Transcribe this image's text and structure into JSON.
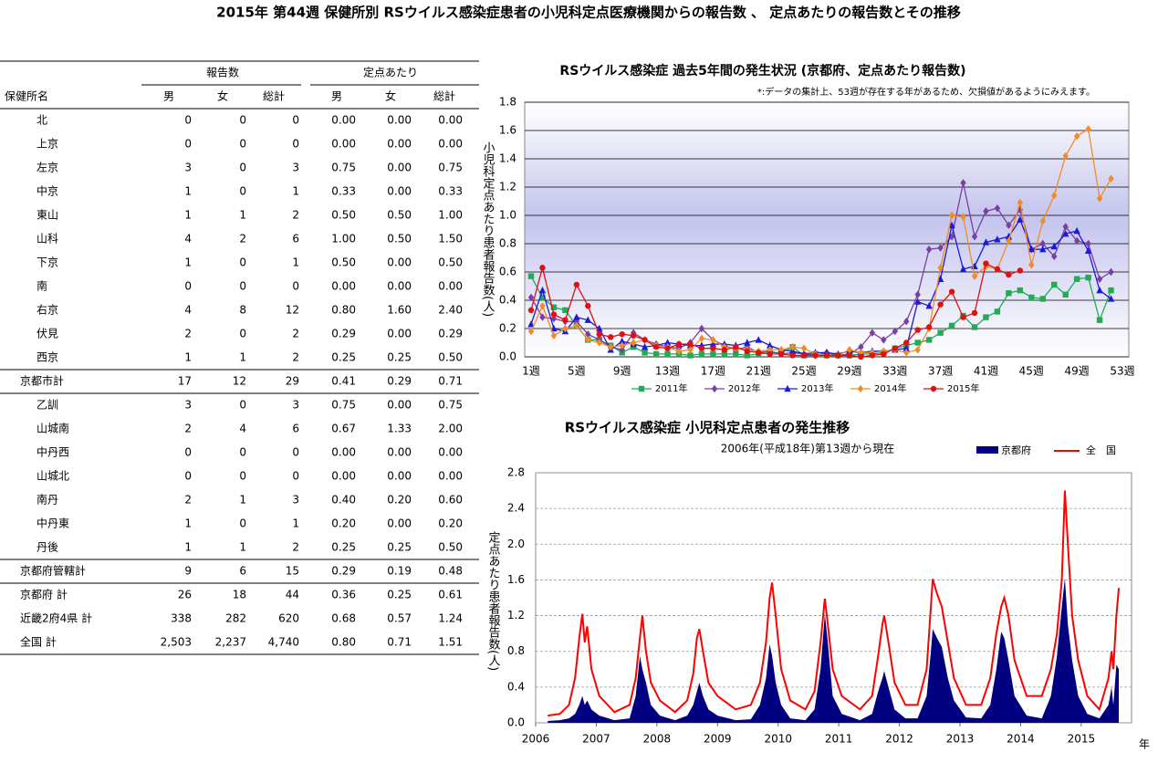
{
  "title": "2015年 第44週 保健所別 RSウイルス感染症患者の小児科定点医療機関からの報告数 、 定点あたりの報告数とその推移",
  "table": {
    "header_groups": [
      "報告数",
      "定点あたり"
    ],
    "columns": [
      "保健所名",
      "男",
      "女",
      "総計",
      "男",
      "女",
      "総計"
    ],
    "groups": [
      {
        "rows": [
          [
            "北",
            "0",
            "0",
            "0",
            "0.00",
            "0.00",
            "0.00"
          ],
          [
            "上京",
            "0",
            "0",
            "0",
            "0.00",
            "0.00",
            "0.00"
          ],
          [
            "左京",
            "3",
            "0",
            "3",
            "0.75",
            "0.00",
            "0.75"
          ],
          [
            "中京",
            "1",
            "0",
            "1",
            "0.33",
            "0.00",
            "0.33"
          ],
          [
            "東山",
            "1",
            "1",
            "2",
            "0.50",
            "0.50",
            "1.00"
          ],
          [
            "山科",
            "4",
            "2",
            "6",
            "1.00",
            "0.50",
            "1.50"
          ],
          [
            "下京",
            "1",
            "0",
            "1",
            "0.50",
            "0.00",
            "0.50"
          ],
          [
            "南",
            "0",
            "0",
            "0",
            "0.00",
            "0.00",
            "0.00"
          ],
          [
            "右京",
            "4",
            "8",
            "12",
            "0.80",
            "1.60",
            "2.40"
          ],
          [
            "伏見",
            "2",
            "0",
            "2",
            "0.29",
            "0.00",
            "0.29"
          ],
          [
            "西京",
            "1",
            "1",
            "2",
            "0.25",
            "0.25",
            "0.50"
          ]
        ],
        "total": [
          "京都市計",
          "17",
          "12",
          "29",
          "0.41",
          "0.29",
          "0.71"
        ]
      },
      {
        "rows": [
          [
            "乙訓",
            "3",
            "0",
            "3",
            "0.75",
            "0.00",
            "0.75"
          ],
          [
            "山城南",
            "2",
            "4",
            "6",
            "0.67",
            "1.33",
            "2.00"
          ],
          [
            "中丹西",
            "0",
            "0",
            "0",
            "0.00",
            "0.00",
            "0.00"
          ],
          [
            "山城北",
            "0",
            "0",
            "0",
            "0.00",
            "0.00",
            "0.00"
          ],
          [
            "南丹",
            "2",
            "1",
            "3",
            "0.40",
            "0.20",
            "0.60"
          ],
          [
            "中丹東",
            "1",
            "0",
            "1",
            "0.20",
            "0.00",
            "0.20"
          ],
          [
            "丹後",
            "1",
            "1",
            "2",
            "0.25",
            "0.25",
            "0.50"
          ]
        ],
        "total": [
          "京都府管轄計",
          "9",
          "6",
          "15",
          "0.29",
          "0.19",
          "0.48"
        ]
      }
    ],
    "summary": [
      [
        "京都府 計",
        "26",
        "18",
        "44",
        "0.36",
        "0.25",
        "0.61"
      ],
      [
        "近畿2府4県 計",
        "338",
        "282",
        "620",
        "0.68",
        "0.57",
        "1.24"
      ],
      [
        "全国 計",
        "2,503",
        "2,237",
        "4,740",
        "0.80",
        "0.71",
        "1.51"
      ]
    ]
  },
  "chart_data": [
    {
      "type": "line",
      "title": "RSウイルス感染症 過去5年間の発生状況 (京都府、定点あたり報告数)",
      "note": "*:データの集計上、53週が存在する年があるため、欠損値があるようにみえます。",
      "y_label": "小児科定点あたり患者報告数(人)",
      "categories": [
        "1週",
        null,
        null,
        null,
        "5週",
        null,
        null,
        null,
        "9週",
        null,
        null,
        null,
        "13週",
        null,
        null,
        null,
        "17週",
        null,
        null,
        null,
        "21週",
        null,
        null,
        null,
        "25週",
        null,
        null,
        null,
        "29週",
        null,
        null,
        null,
        "33週",
        null,
        null,
        null,
        "37週",
        null,
        null,
        null,
        "41週",
        null,
        null,
        null,
        "45週",
        null,
        null,
        null,
        "49週",
        null,
        null,
        null,
        "53週"
      ],
      "ylim": [
        0,
        1.8
      ],
      "yticks": [
        {
          "value": 0,
          "label": "0.0"
        },
        0.2,
        0.4,
        0.6,
        0.8,
        {
          "value": 1,
          "label": "1.0"
        },
        1.2,
        1.4,
        1.6,
        1.8
      ],
      "grid": true,
      "series": [
        {
          "name": "2011年",
          "color": "#22aa55",
          "marker": "square",
          "values": [
            0.57,
            0.42,
            0.35,
            0.33,
            0.22,
            0.12,
            0.12,
            0.08,
            0.03,
            0.07,
            0.03,
            0.02,
            0.02,
            0.02,
            0.01,
            0.02,
            0.02,
            0.02,
            0.02,
            0.01,
            0.02,
            0.03,
            0.03,
            0.07,
            0.01,
            0.02,
            0.01,
            0.01,
            0.01,
            0.02,
            0.02,
            0.03,
            0.06,
            0.08,
            0.1,
            0.12,
            0.17,
            0.22,
            0.29,
            0.21,
            0.28,
            0.32,
            0.45,
            0.47,
            0.42,
            0.41,
            0.51,
            0.44,
            0.55,
            0.56,
            0.26,
            0.47,
            null
          ]
        },
        {
          "name": "2012年",
          "color": "#7b3fa0",
          "marker": "diamond",
          "values": [
            0.42,
            0.28,
            0.27,
            0.25,
            0.25,
            0.16,
            0.12,
            0.07,
            0.05,
            0.17,
            0.12,
            0.09,
            0.07,
            0.06,
            0.1,
            0.2,
            0.12,
            0.08,
            0.05,
            0.07,
            0.03,
            0.04,
            0.02,
            0.03,
            0.02,
            0.01,
            0.03,
            0.01,
            0.02,
            0.07,
            0.17,
            0.12,
            0.18,
            0.25,
            0.44,
            0.76,
            0.77,
            0.85,
            1.23,
            0.85,
            1.03,
            1.05,
            0.93,
            1.04,
            0.76,
            0.8,
            0.71,
            0.92,
            0.82,
            0.8,
            0.55,
            0.6,
            null
          ]
        },
        {
          "name": "2013年",
          "color": "#1a1adc",
          "marker": "triangle",
          "values": [
            0.23,
            0.47,
            0.2,
            0.18,
            0.28,
            0.26,
            0.2,
            0.05,
            0.11,
            0.09,
            0.07,
            0.08,
            0.1,
            0.09,
            0.08,
            0.08,
            0.09,
            0.09,
            0.08,
            0.1,
            0.12,
            0.08,
            0.05,
            0.04,
            0.02,
            0.03,
            0.03,
            0.02,
            0.04,
            0.03,
            0.04,
            0.04,
            0.05,
            0.06,
            0.39,
            0.36,
            0.55,
            0.93,
            0.62,
            0.64,
            0.81,
            0.83,
            0.85,
            0.97,
            0.76,
            0.76,
            0.78,
            0.87,
            0.89,
            0.75,
            0.47,
            0.41,
            null
          ]
        },
        {
          "name": "2014年",
          "color": "#f08c28",
          "marker": "diamond",
          "values": [
            0.18,
            0.36,
            0.15,
            0.2,
            0.22,
            0.12,
            0.1,
            0.07,
            0.08,
            0.1,
            0.12,
            0.08,
            0.07,
            0.04,
            0.05,
            0.13,
            0.12,
            0.07,
            0.06,
            0.05,
            0.04,
            0.05,
            0.05,
            0.07,
            0.06,
            0.02,
            0.01,
            0.01,
            0.05,
            0.03,
            0.03,
            0.04,
            0.05,
            0.03,
            0.05,
            0.2,
            0.63,
            1.0,
            0.99,
            0.57,
            0.64,
            0.62,
            0.82,
            1.09,
            0.65,
            0.96,
            1.14,
            1.42,
            1.56,
            1.61,
            1.12,
            1.26,
            null
          ]
        },
        {
          "name": "2015年",
          "color": "#e01010",
          "marker": "circle",
          "values": [
            0.33,
            0.63,
            0.3,
            0.26,
            0.51,
            0.36,
            0.16,
            0.14,
            0.16,
            0.15,
            0.12,
            0.07,
            0.06,
            0.09,
            0.09,
            0.06,
            0.06,
            0.05,
            0.07,
            0.04,
            0.03,
            0.02,
            0.02,
            0.01,
            0.01,
            0.01,
            0.01,
            0.01,
            0.01,
            0.0,
            0.01,
            0.02,
            0.06,
            0.1,
            0.19,
            0.21,
            0.37,
            0.46,
            0.28,
            0.31,
            0.66,
            0.62,
            0.58,
            0.61,
            null,
            null,
            null,
            null,
            null,
            null,
            null,
            null,
            null
          ]
        }
      ]
    },
    {
      "type": "area",
      "title": "RSウイルス感染症 小児科定点患者の発生推移",
      "subtitle": "2006年(平成18年)第13週から現在",
      "y_label": "定点あたり患者報告数(人)",
      "x_label": "年",
      "x": [
        2006.2,
        2006.4,
        2006.55,
        2006.65,
        2006.72,
        2006.77,
        2006.81,
        2006.85,
        2006.92,
        2007.05,
        2007.3,
        2007.55,
        2007.65,
        2007.72,
        2007.76,
        2007.82,
        2007.9,
        2008.05,
        2008.3,
        2008.5,
        2008.6,
        2008.66,
        2008.7,
        2008.76,
        2008.85,
        2009.0,
        2009.3,
        2009.55,
        2009.7,
        2009.8,
        2009.86,
        2009.9,
        2009.96,
        2010.05,
        2010.2,
        2010.45,
        2010.6,
        2010.7,
        2010.77,
        2010.82,
        2010.9,
        2011.05,
        2011.35,
        2011.55,
        2011.65,
        2011.72,
        2011.75,
        2011.82,
        2011.92,
        2012.1,
        2012.3,
        2012.45,
        2012.52,
        2012.55,
        2012.62,
        2012.7,
        2012.8,
        2012.9,
        2013.1,
        2013.35,
        2013.5,
        2013.6,
        2013.68,
        2013.73,
        2013.8,
        2013.9,
        2014.1,
        2014.35,
        2014.5,
        2014.6,
        2014.68,
        2014.73,
        2014.78,
        2014.85,
        2014.95,
        2015.1,
        2015.3,
        2015.45,
        2015.5,
        2015.53,
        2015.58,
        2015.62
      ],
      "xlim": [
        2006,
        2015.83
      ],
      "xticks": [
        2006,
        2007,
        2008,
        2009,
        2010,
        2011,
        2012,
        2013,
        2014,
        2015
      ],
      "ylim": [
        0,
        2.8
      ],
      "yticks": [
        {
          "value": 0,
          "label": "0.0"
        },
        0.4,
        0.8,
        1.2,
        1.6,
        {
          "value": 2,
          "label": "2.0"
        },
        2.4,
        2.8
      ],
      "grid": true,
      "series": [
        {
          "name": "京都府",
          "color": "#000080",
          "type": "area",
          "values": [
            0.02,
            0.03,
            0.05,
            0.1,
            0.2,
            0.3,
            0.2,
            0.25,
            0.15,
            0.08,
            0.03,
            0.05,
            0.3,
            0.75,
            0.6,
            0.45,
            0.2,
            0.08,
            0.03,
            0.08,
            0.2,
            0.35,
            0.45,
            0.3,
            0.15,
            0.08,
            0.03,
            0.04,
            0.2,
            0.5,
            0.88,
            0.75,
            0.45,
            0.2,
            0.05,
            0.03,
            0.15,
            0.6,
            1.22,
            0.9,
            0.3,
            0.1,
            0.03,
            0.1,
            0.35,
            0.5,
            0.58,
            0.4,
            0.15,
            0.05,
            0.05,
            0.3,
            0.8,
            1.05,
            0.95,
            0.85,
            0.5,
            0.25,
            0.06,
            0.05,
            0.2,
            0.6,
            1.02,
            0.95,
            0.7,
            0.3,
            0.08,
            0.05,
            0.3,
            0.75,
            1.3,
            1.62,
            1.1,
            0.7,
            0.3,
            0.1,
            0.05,
            0.2,
            0.4,
            0.2,
            0.65,
            0.6
          ]
        },
        {
          "name": "全　国",
          "color": "#ff0000",
          "type": "line",
          "values": [
            0.08,
            0.1,
            0.2,
            0.5,
            0.95,
            1.22,
            0.9,
            1.08,
            0.6,
            0.3,
            0.12,
            0.2,
            0.5,
            0.95,
            1.2,
            0.8,
            0.45,
            0.25,
            0.12,
            0.25,
            0.55,
            0.95,
            1.05,
            0.8,
            0.45,
            0.3,
            0.15,
            0.2,
            0.45,
            0.9,
            1.4,
            1.57,
            1.2,
            0.6,
            0.25,
            0.15,
            0.35,
            0.9,
            1.39,
            1.1,
            0.6,
            0.3,
            0.15,
            0.3,
            0.75,
            1.1,
            1.2,
            0.9,
            0.45,
            0.2,
            0.2,
            0.6,
            1.3,
            1.61,
            1.45,
            1.3,
            0.9,
            0.5,
            0.2,
            0.2,
            0.5,
            1.0,
            1.3,
            1.4,
            1.2,
            0.7,
            0.3,
            0.3,
            0.6,
            1.0,
            1.6,
            2.6,
            2.0,
            1.2,
            0.7,
            0.3,
            0.15,
            0.5,
            0.8,
            0.6,
            1.2,
            1.51
          ]
        }
      ]
    }
  ]
}
